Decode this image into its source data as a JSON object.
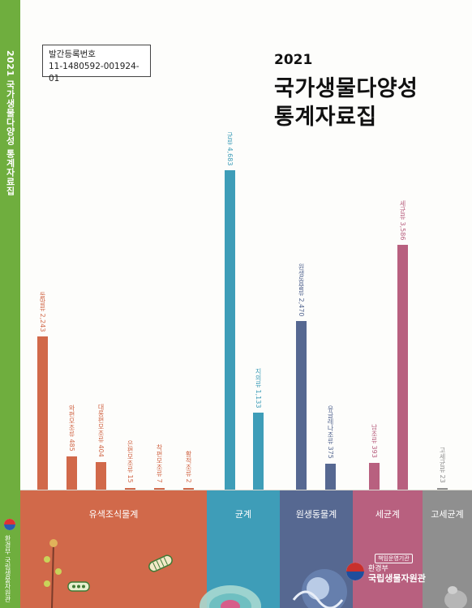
{
  "spine": {
    "title": "2021 국가생물다양성 통계자료집",
    "publisher_small": "환경부",
    "publisher": "국립생물자원관"
  },
  "registration": {
    "label": "발간등록번호",
    "number": "11-1480592-001924-01"
  },
  "cover": {
    "year": "2021",
    "title_line1": "국가생물다양성",
    "title_line2": "통계자료집"
  },
  "publisher": {
    "tag": "책임운영기관",
    "ministry": "환경부",
    "institute": "국립생물자원관"
  },
  "colors": {
    "spine": "#6fae3e",
    "eukaryote": "#d1694a",
    "fungi": "#3e9db8",
    "protozoa": "#566891",
    "bacteria": "#b8607f",
    "archaea": "#8f8f8f"
  },
  "chart_data": {
    "type": "bar",
    "y_scale_reference": {
      "value": 4683,
      "label": "균류 4,683"
    },
    "groups": [
      {
        "name": "유색조식물계",
        "color": "#d1694a",
        "bars": [
          {
            "label": "돌말류 2,243",
            "value": 2243
          },
          {
            "label": "와편모조류 485",
            "value": 485
          },
          {
            "label": "대롱편모조류 404",
            "value": 404
          },
          {
            "label": "은편모조류 15",
            "value": 15
          },
          {
            "label": "착편모조류 7",
            "value": 7
          },
          {
            "label": "황적조류 2",
            "value": 2
          }
        ]
      },
      {
        "name": "균계",
        "color": "#3e9db8",
        "bars": [
          {
            "label": "균류 4,683",
            "value": 4683
          },
          {
            "label": "지의류 1,133",
            "value": 1133
          }
        ]
      },
      {
        "name": "원생동물계",
        "color": "#566891",
        "bars": [
          {
            "label": "원생동물류 2,470",
            "value": 2470
          },
          {
            "label": "유글레나조류 375",
            "value": 375
          }
        ]
      },
      {
        "name": "세균계",
        "color": "#b8607f",
        "bars": [
          {
            "label": "남조류 393",
            "value": 393
          },
          {
            "label": "세균류 3,586",
            "value": 3586
          }
        ]
      },
      {
        "name": "고세균계",
        "color": "#8f8f8f",
        "bars": [
          {
            "label": "고세균류 23",
            "value": 23
          }
        ]
      }
    ]
  }
}
